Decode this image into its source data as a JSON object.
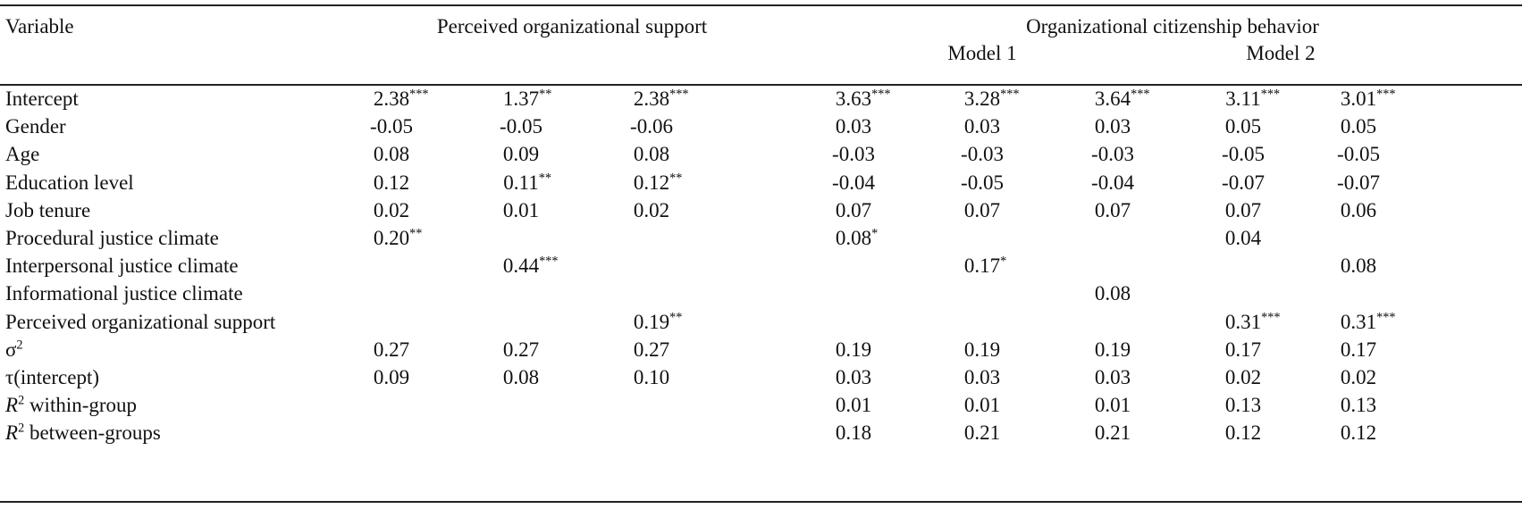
{
  "header": {
    "variable": "Variable",
    "pos_group": "Perceived organizational support",
    "ocb_group": "Organizational citizenship behavior",
    "model1": "Model 1",
    "model2": "Model 2"
  },
  "rows": [
    {
      "label": "Intercept",
      "cells": [
        [
          "2.38",
          "***"
        ],
        [
          "1.37",
          "**"
        ],
        [
          "2.38",
          "***"
        ],
        [
          "3.63",
          "***"
        ],
        [
          "3.28",
          "***"
        ],
        [
          "3.64",
          "***"
        ],
        [
          "3.11",
          "***"
        ],
        [
          "3.01",
          "***"
        ]
      ]
    },
    {
      "label": "Gender",
      "cells": [
        [
          "-0.05",
          ""
        ],
        [
          "-0.05",
          ""
        ],
        [
          "-0.06",
          ""
        ],
        [
          "0.03",
          ""
        ],
        [
          "0.03",
          ""
        ],
        [
          "0.03",
          ""
        ],
        [
          "0.05",
          ""
        ],
        [
          "0.05",
          ""
        ]
      ]
    },
    {
      "label": "Age",
      "cells": [
        [
          "0.08",
          ""
        ],
        [
          "0.09",
          ""
        ],
        [
          "0.08",
          ""
        ],
        [
          "-0.03",
          ""
        ],
        [
          "-0.03",
          ""
        ],
        [
          "-0.03",
          ""
        ],
        [
          "-0.05",
          ""
        ],
        [
          "-0.05",
          ""
        ]
      ]
    },
    {
      "label": "Education level",
      "cells": [
        [
          "0.12",
          ""
        ],
        [
          "0.11",
          "**"
        ],
        [
          "0.12",
          "**"
        ],
        [
          "-0.04",
          ""
        ],
        [
          "-0.05",
          ""
        ],
        [
          "-0.04",
          ""
        ],
        [
          "-0.07",
          ""
        ],
        [
          "-0.07",
          ""
        ]
      ]
    },
    {
      "label": "Job tenure",
      "cells": [
        [
          "0.02",
          ""
        ],
        [
          "0.01",
          ""
        ],
        [
          "0.02",
          ""
        ],
        [
          "0.07",
          ""
        ],
        [
          "0.07",
          ""
        ],
        [
          "0.07",
          ""
        ],
        [
          "0.07",
          ""
        ],
        [
          "0.06",
          ""
        ]
      ]
    },
    {
      "label": "Procedural justice climate",
      "cells": [
        [
          "0.20",
          "**"
        ],
        [
          "",
          ""
        ],
        [
          "",
          ""
        ],
        [
          "0.08",
          "*"
        ],
        [
          "",
          ""
        ],
        [
          "",
          ""
        ],
        [
          "0.04",
          ""
        ],
        [
          "",
          ""
        ]
      ]
    },
    {
      "label": "Interpersonal justice climate",
      "cells": [
        [
          "",
          ""
        ],
        [
          "0.44",
          "***"
        ],
        [
          "",
          ""
        ],
        [
          "",
          ""
        ],
        [
          "0.17",
          "*"
        ],
        [
          "",
          ""
        ],
        [
          "",
          ""
        ],
        [
          "0.08",
          ""
        ]
      ]
    },
    {
      "label": "Informational justice climate",
      "cells": [
        [
          "",
          ""
        ],
        [
          "",
          ""
        ],
        [
          "",
          ""
        ],
        [
          "",
          ""
        ],
        [
          "",
          ""
        ],
        [
          "0.08",
          ""
        ],
        [
          "",
          ""
        ],
        [
          "",
          ""
        ]
      ]
    },
    {
      "label": "Perceived organizational support",
      "cells": [
        [
          "",
          ""
        ],
        [
          "",
          ""
        ],
        [
          "0.19",
          "**"
        ],
        [
          "",
          ""
        ],
        [
          "",
          ""
        ],
        [
          "",
          ""
        ],
        [
          "0.31",
          "***"
        ],
        [
          "0.31",
          "***"
        ]
      ]
    },
    {
      "label": "σ",
      "label_sup": "2",
      "cells": [
        [
          "0.27",
          ""
        ],
        [
          "0.27",
          ""
        ],
        [
          "0.27",
          ""
        ],
        [
          "0.19",
          ""
        ],
        [
          "0.19",
          ""
        ],
        [
          "0.19",
          ""
        ],
        [
          "0.17",
          ""
        ],
        [
          "0.17",
          ""
        ]
      ]
    },
    {
      "label": "τ(intercept)",
      "cells": [
        [
          "0.09",
          ""
        ],
        [
          "0.08",
          ""
        ],
        [
          "0.10",
          ""
        ],
        [
          "0.03",
          ""
        ],
        [
          "0.03",
          ""
        ],
        [
          "0.03",
          ""
        ],
        [
          "0.02",
          ""
        ],
        [
          "0.02",
          ""
        ]
      ]
    },
    {
      "label_italic": "R",
      "label_sup": "2",
      "label": " within-group",
      "cells": [
        [
          "",
          ""
        ],
        [
          "",
          ""
        ],
        [
          "",
          ""
        ],
        [
          "0.01",
          ""
        ],
        [
          "0.01",
          ""
        ],
        [
          "0.01",
          ""
        ],
        [
          "0.13",
          ""
        ],
        [
          "0.13",
          ""
        ]
      ]
    },
    {
      "label_italic": "R",
      "label_sup": "2",
      "label": " between-groups",
      "cells": [
        [
          "",
          ""
        ],
        [
          "",
          ""
        ],
        [
          "",
          ""
        ],
        [
          "0.18",
          ""
        ],
        [
          "0.21",
          ""
        ],
        [
          "0.21",
          ""
        ],
        [
          "0.12",
          ""
        ],
        [
          "0.12",
          ""
        ]
      ]
    }
  ]
}
